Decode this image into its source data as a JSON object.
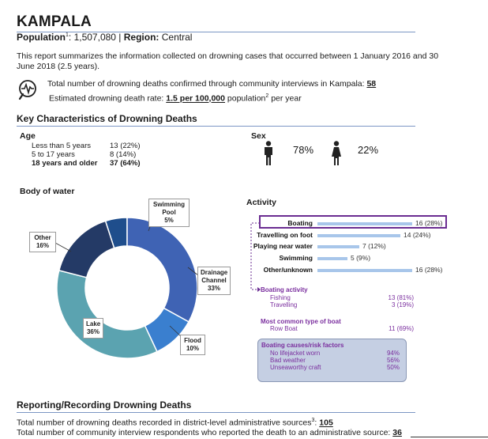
{
  "header": {
    "title": "KAMPALA",
    "population_label": "Population",
    "population_sup": "1",
    "population_value": ": 1,507,080 | ",
    "region_label": "Region:",
    "region_value": " Central"
  },
  "intro": "This report summarizes the information collected on drowning cases that occurred between 1 January 2016 and 30 June 2018 (2.5 years).",
  "stats": {
    "deaths_text": "Total number of drowning deaths confirmed through community interviews in Kampala: ",
    "deaths_value": "58",
    "rate_text": "Estimated drowning death rate: ",
    "rate_value": "1.5 per 100,000",
    "rate_suffix": " population",
    "rate_sup": "2",
    "rate_tail": " per year"
  },
  "key_characteristics": {
    "title": "Key Characteristics of Drowning Deaths",
    "age": {
      "heading": "Age",
      "rows": [
        {
          "label": "Less than 5 years",
          "value": "13 (22%)"
        },
        {
          "label": "5 to 17 years",
          "value": "8 (14%)"
        },
        {
          "label": "18 years and older",
          "value": "37 (64%)"
        }
      ]
    },
    "sex": {
      "heading": "Sex",
      "male_pct": "78%",
      "female_pct": "22%"
    }
  },
  "body_of_water": {
    "heading": "Body of water",
    "labels": {
      "swimming_pool": [
        "Swimming",
        "Pool",
        "5%"
      ],
      "other": [
        "Other",
        "16%"
      ],
      "drainage": [
        "Drainage",
        "Channel",
        "33%"
      ],
      "lake": [
        "Lake",
        "36%"
      ],
      "flood": [
        "Flood",
        "10%"
      ]
    }
  },
  "chart_data": {
    "type": "pie",
    "donut": true,
    "categories": [
      "Swimming Pool",
      "Drainage Channel",
      "Flood",
      "Lake",
      "Other"
    ],
    "values": [
      5,
      33,
      10,
      36,
      16
    ],
    "colors": [
      "#1f4e8c",
      "#3f63b4",
      "#3a7fcf",
      "#5ba3b0",
      "#243a66"
    ]
  },
  "activity": {
    "heading": "Activity",
    "rows": [
      {
        "label": "Boating",
        "value": "16 (28%)",
        "count": 16
      },
      {
        "label": "Travelling on foot",
        "value": "14 (24%)",
        "count": 14
      },
      {
        "label": "Playing near water",
        "value": "7 (12%)",
        "count": 7
      },
      {
        "label": "Swimming",
        "value": "5 (9%)",
        "count": 5
      },
      {
        "label": "Other/unknown",
        "value": "16 (28%)",
        "count": 16
      }
    ],
    "boating_activity": {
      "heading": "Boating activity",
      "rows": [
        {
          "label": "Fishing",
          "value": "13 (81%)"
        },
        {
          "label": "Travelling",
          "value": "3 (19%)"
        }
      ]
    },
    "boat_type": {
      "heading": "Most common type of boat",
      "rows": [
        {
          "label": "Row Boat",
          "value": "11 (69%)"
        }
      ]
    },
    "causes": {
      "heading": "Boating causes/risk factors",
      "rows": [
        {
          "label": "No lifejacket worn",
          "value": "94%"
        },
        {
          "label": "Bad weather",
          "value": "56%"
        },
        {
          "label": "Unseaworthy craft",
          "value": "50%"
        }
      ]
    }
  },
  "reporting": {
    "title": "Reporting/Recording Drowning Deaths",
    "line1_text": "Total number of drowning deaths recorded in district-level administrative sources",
    "line1_sup": "3",
    "line1_colon": ": ",
    "line1_value": "105",
    "line2_text": "Total number of community interview respondents who reported the death to an administrative source: ",
    "line2_value": "36"
  },
  "colors": {
    "accent_purple": "#6a2c91",
    "bar": "#a8c6ea",
    "rule": "#7b96c4"
  },
  "icons": {
    "heart": "heart-pulse-icon",
    "male": "male-person-icon",
    "female": "female-person-icon"
  }
}
